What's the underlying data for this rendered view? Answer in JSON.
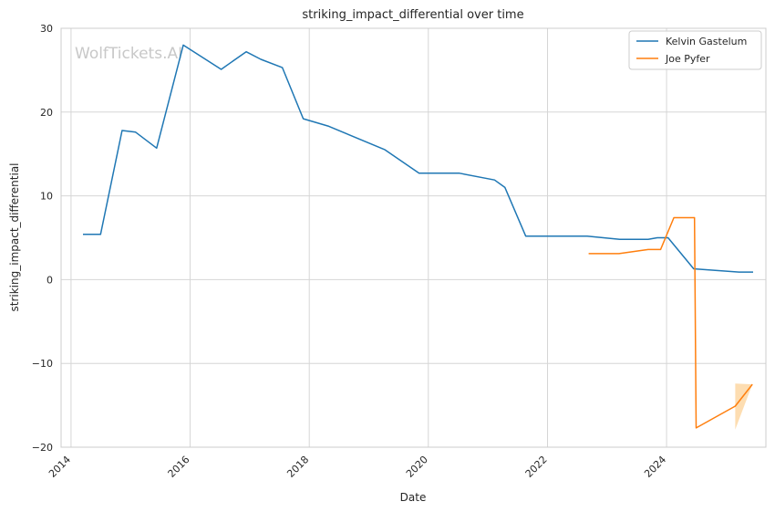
{
  "chart_data": {
    "type": "line",
    "title": "striking_impact_differential over time",
    "xlabel": "Date",
    "ylabel": "striking_impact_differential",
    "watermark": "WolfTickets.AI",
    "x_scale": "date",
    "xlim": [
      "2013-11-01",
      "2025-09-01"
    ],
    "ylim": [
      -20,
      30
    ],
    "x_ticks": [
      "2014",
      "2016",
      "2018",
      "2020",
      "2022",
      "2024"
    ],
    "y_ticks": [
      30,
      20,
      10,
      0,
      -10,
      -20
    ],
    "y_tick_labels": [
      "30",
      "20",
      "10",
      "0",
      "−10",
      "−20"
    ],
    "grid": true,
    "legend_position": "top-right",
    "series": [
      {
        "name": "Kelvin Gastelum",
        "color": "#1f77b4",
        "points": [
          [
            "2014-03-15",
            5.4
          ],
          [
            "2014-07-01",
            5.4
          ],
          [
            "2014-11-10",
            17.8
          ],
          [
            "2015-02-01",
            17.6
          ],
          [
            "2015-06-10",
            15.7
          ],
          [
            "2015-11-20",
            28.0
          ],
          [
            "2016-07-10",
            25.1
          ],
          [
            "2016-12-10",
            27.2
          ],
          [
            "2017-03-10",
            26.3
          ],
          [
            "2017-07-20",
            25.3
          ],
          [
            "2017-11-25",
            19.2
          ],
          [
            "2018-05-01",
            18.3
          ],
          [
            "2019-04-10",
            15.5
          ],
          [
            "2019-11-05",
            12.7
          ],
          [
            "2020-07-10",
            12.7
          ],
          [
            "2021-02-10",
            11.9
          ],
          [
            "2021-04-15",
            11.0
          ],
          [
            "2021-08-20",
            5.2
          ],
          [
            "2022-09-01",
            5.2
          ],
          [
            "2023-03-20",
            4.8
          ],
          [
            "2023-09-10",
            4.8
          ],
          [
            "2023-11-05",
            5.0
          ],
          [
            "2024-01-10",
            5.0
          ],
          [
            "2024-06-15",
            1.3
          ],
          [
            "2025-03-20",
            0.9
          ],
          [
            "2025-06-15",
            0.9
          ]
        ]
      },
      {
        "name": "Joe Pyfer",
        "color": "#ff7f0e",
        "band_color": "#fdd9a8",
        "points": [
          [
            "2022-09-10",
            3.1
          ],
          [
            "2023-03-15",
            3.1
          ],
          [
            "2023-09-10",
            3.6
          ],
          [
            "2023-11-25",
            3.6
          ],
          [
            "2024-02-15",
            7.4
          ],
          [
            "2024-06-20",
            7.4
          ],
          [
            "2024-06-30",
            -17.7
          ],
          [
            "2025-02-25",
            -15.1
          ],
          [
            "2025-06-10",
            -12.5
          ]
        ],
        "confidence_band": [
          [
            "2025-02-25",
            -17.9,
            -12.4
          ],
          [
            "2025-06-10",
            -12.5,
            -12.5
          ]
        ]
      }
    ]
  }
}
